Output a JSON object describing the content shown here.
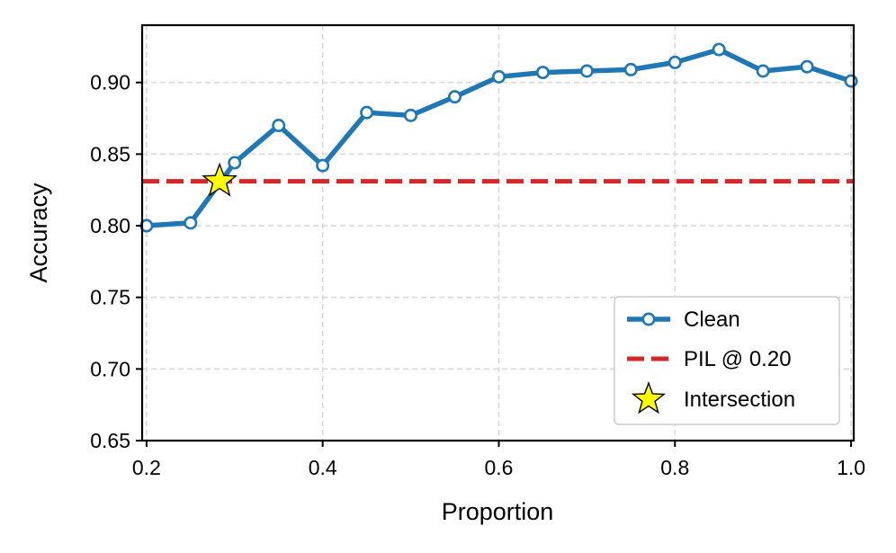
{
  "chart_data": {
    "type": "line",
    "xlabel": "Proportion",
    "ylabel": "Accuracy",
    "xlim": [
      0.195,
      1.003
    ],
    "ylim": [
      0.65,
      0.94
    ],
    "xticks": [
      0.2,
      0.4,
      0.6,
      0.8,
      1.0
    ],
    "xtick_labels": [
      "0.2",
      "0.4",
      "0.6",
      "0.8",
      "1.0"
    ],
    "yticks": [
      0.65,
      0.7,
      0.75,
      0.8,
      0.85,
      0.9
    ],
    "ytick_labels": [
      "0.65",
      "0.70",
      "0.75",
      "0.80",
      "0.85",
      "0.90"
    ],
    "grid": true,
    "legend_position": "lower-right",
    "series": [
      {
        "name": "Clean",
        "color": "#1f77b4",
        "marker": "hollow-circle",
        "x": [
          0.2,
          0.25,
          0.3,
          0.35,
          0.4,
          0.45,
          0.5,
          0.55,
          0.6,
          0.65,
          0.7,
          0.75,
          0.8,
          0.85,
          0.9,
          0.95,
          1.0
        ],
        "y": [
          0.8,
          0.802,
          0.844,
          0.87,
          0.842,
          0.879,
          0.877,
          0.89,
          0.904,
          0.907,
          0.908,
          0.909,
          0.914,
          0.923,
          0.908,
          0.911,
          0.901
        ]
      }
    ],
    "reference_line": {
      "name": "PIL @ 0.20",
      "y": 0.831,
      "color": "#d62728",
      "style": "dashed"
    },
    "intersection": {
      "name": "Intersection",
      "x": 0.283,
      "y": 0.831,
      "color": "#ffff00",
      "marker": "star"
    }
  }
}
